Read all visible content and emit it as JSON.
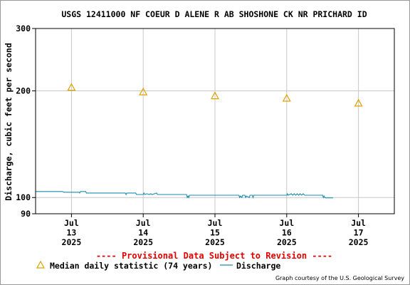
{
  "chart_data": {
    "type": "line",
    "title": "USGS 12411000 NF COEUR D ALENE R AB SHOSHONE CK NR PRICHARD ID",
    "ylabel": "Discharge, cubic feet per second",
    "xlabel": "",
    "y_scale": "log",
    "ylim": [
      90,
      300
    ],
    "y_ticks": [
      {
        "value": 300,
        "label": "300"
      },
      {
        "value": 200,
        "label": "200"
      },
      {
        "value": 100,
        "label": "100"
      },
      {
        "value": 90,
        "label": "90"
      }
    ],
    "xlim": [
      "2025-07-12 12:00",
      "2025-07-17 12:00"
    ],
    "x_ticks": [
      {
        "date": "2025-07-13 00:00",
        "lines": [
          "Jul",
          "13",
          "2025"
        ]
      },
      {
        "date": "2025-07-14 00:00",
        "lines": [
          "Jul",
          "14",
          "2025"
        ]
      },
      {
        "date": "2025-07-15 00:00",
        "lines": [
          "Jul",
          "15",
          "2025"
        ]
      },
      {
        "date": "2025-07-16 00:00",
        "lines": [
          "Jul",
          "16",
          "2025"
        ]
      },
      {
        "date": "2025-07-17 00:00",
        "lines": [
          "Jul",
          "17",
          "2025"
        ]
      }
    ],
    "grid": true,
    "series": [
      {
        "name": "Discharge",
        "color": "#1a8cb0",
        "style": "line",
        "points": [
          [
            "2025-07-12 12:00",
            104
          ],
          [
            "2025-07-12 21:00",
            104
          ],
          [
            "2025-07-12 21:30",
            103.5
          ],
          [
            "2025-07-13 00:00",
            103.5
          ],
          [
            "2025-07-13 02:30",
            103.5
          ],
          [
            "2025-07-13 02:45",
            103
          ],
          [
            "2025-07-13 03:00",
            104
          ],
          [
            "2025-07-13 04:45",
            104
          ],
          [
            "2025-07-13 05:00",
            103
          ],
          [
            "2025-07-13 12:00",
            103
          ],
          [
            "2025-07-13 18:00",
            103
          ],
          [
            "2025-07-13 18:15",
            102
          ],
          [
            "2025-07-13 18:30",
            103
          ],
          [
            "2025-07-13 21:30",
            103
          ],
          [
            "2025-07-13 21:45",
            102
          ],
          [
            "2025-07-14 00:00",
            102
          ],
          [
            "2025-07-14 00:15",
            103
          ],
          [
            "2025-07-14 00:30",
            102
          ],
          [
            "2025-07-14 01:15",
            102.5
          ],
          [
            "2025-07-14 02:00",
            102
          ],
          [
            "2025-07-14 02:30",
            102.5
          ],
          [
            "2025-07-14 03:00",
            102
          ],
          [
            "2025-07-14 04:30",
            103
          ],
          [
            "2025-07-14 04:45",
            102
          ],
          [
            "2025-07-14 12:00",
            102
          ],
          [
            "2025-07-14 14:30",
            102
          ],
          [
            "2025-07-14 14:45",
            100
          ],
          [
            "2025-07-14 15:00",
            101
          ],
          [
            "2025-07-14 15:15",
            100
          ],
          [
            "2025-07-14 15:30",
            101.5
          ],
          [
            "2025-07-14 18:00",
            101.5
          ],
          [
            "2025-07-15 00:00",
            101.5
          ],
          [
            "2025-07-15 08:00",
            101.5
          ],
          [
            "2025-07-15 08:15",
            100
          ],
          [
            "2025-07-15 08:30",
            101
          ],
          [
            "2025-07-15 09:00",
            100
          ],
          [
            "2025-07-15 09:15",
            101.5
          ],
          [
            "2025-07-15 10:00",
            101.5
          ],
          [
            "2025-07-15 10:15",
            100
          ],
          [
            "2025-07-15 10:30",
            101
          ],
          [
            "2025-07-15 11:30",
            100
          ],
          [
            "2025-07-15 11:45",
            101.5
          ],
          [
            "2025-07-15 12:30",
            101.5
          ],
          [
            "2025-07-15 12:45",
            100
          ],
          [
            "2025-07-15 13:00",
            101.5
          ],
          [
            "2025-07-16 00:00",
            101.5
          ],
          [
            "2025-07-16 00:15",
            102.5
          ],
          [
            "2025-07-16 00:30",
            101.5
          ],
          [
            "2025-07-16 01:30",
            102.5
          ],
          [
            "2025-07-16 02:00",
            101.5
          ],
          [
            "2025-07-16 02:30",
            102.5
          ],
          [
            "2025-07-16 03:00",
            101.5
          ],
          [
            "2025-07-16 03:30",
            102.5
          ],
          [
            "2025-07-16 04:00",
            101.5
          ],
          [
            "2025-07-16 04:30",
            102.5
          ],
          [
            "2025-07-16 05:00",
            101.5
          ],
          [
            "2025-07-16 05:30",
            102.5
          ],
          [
            "2025-07-16 06:00",
            101.5
          ],
          [
            "2025-07-16 12:00",
            101.5
          ],
          [
            "2025-07-16 12:15",
            100
          ],
          [
            "2025-07-16 12:30",
            101
          ],
          [
            "2025-07-16 12:45",
            100
          ],
          [
            "2025-07-16 13:00",
            99.8
          ],
          [
            "2025-07-16 15:30",
            99.8
          ]
        ]
      },
      {
        "name": "Median daily statistic (74 years)",
        "color": "#e0a000",
        "style": "triangle",
        "points": [
          [
            "2025-07-13 00:00",
            205
          ],
          [
            "2025-07-14 00:00",
            199
          ],
          [
            "2025-07-15 00:00",
            194
          ],
          [
            "2025-07-16 00:00",
            191
          ],
          [
            "2025-07-17 00:00",
            185
          ]
        ]
      }
    ],
    "banner": "---- Provisional Data Subject to Revision ----",
    "banner_color": "#e00000",
    "legend": [
      {
        "label": "Median daily statistic (74 years)",
        "marker": "triangle"
      },
      {
        "label": "Discharge",
        "marker": "line"
      }
    ],
    "legend_placement": "bottom",
    "credit": "Graph courtesy of the U.S. Geological Survey"
  }
}
